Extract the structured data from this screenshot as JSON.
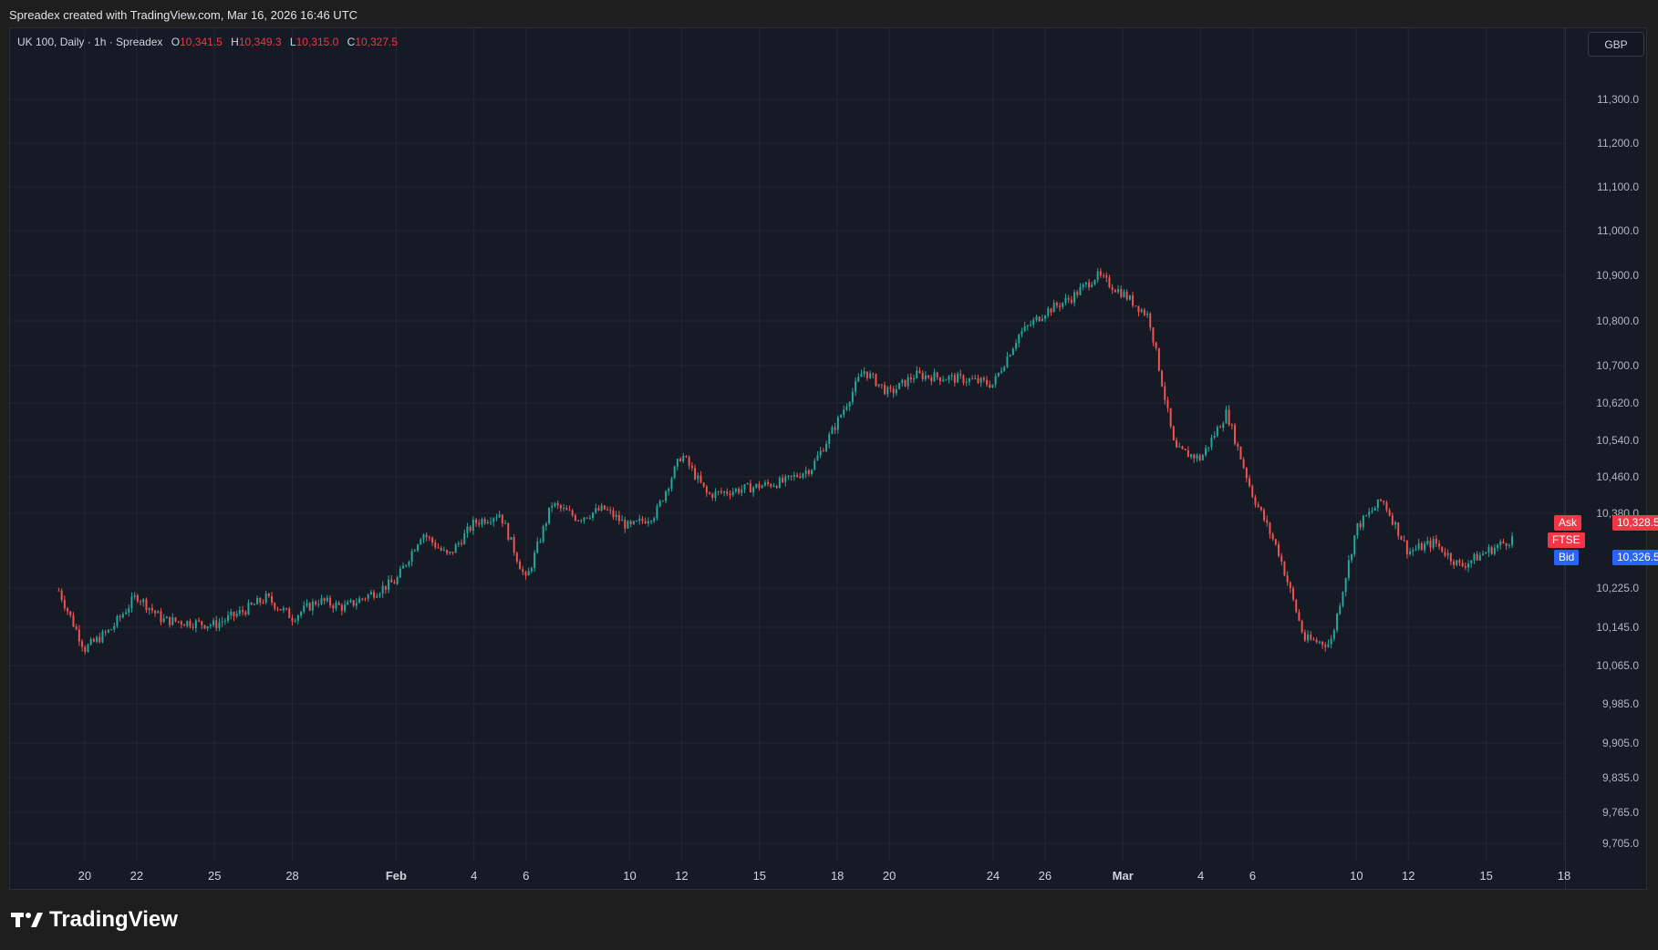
{
  "header": {
    "credit": "Spreadex created with TradingView.com, Mar 16, 2026 16:46 UTC"
  },
  "legend": {
    "symbol": "UK 100, Daily · 1h · Spreadex",
    "open_key": "O",
    "open": "10,341.5",
    "high_key": "H",
    "high": "10,349.3",
    "low_key": "L",
    "low": "10,315.0",
    "close_key": "C",
    "close": "10,327.5"
  },
  "currency": "GBP",
  "price_tags": {
    "ask_label": "Ask",
    "ask_value": "10,328.5",
    "symbol_label": "FTSE",
    "bid_label": "Bid",
    "bid_value": "10,326.5"
  },
  "brand": {
    "name": "TradingView"
  },
  "colors": {
    "up": "#26a69a",
    "down": "#ef5350",
    "ask": "#f23645",
    "bid": "#2962ff",
    "grid": "#232733",
    "background": "#161a25"
  },
  "chart_data": {
    "type": "candlestick",
    "title": "UK 100, Daily · 1h · Spreadex",
    "y_tick_labels": [
      "11,300.0",
      "11,200.0",
      "11,100.0",
      "11,000.0",
      "10,900.0",
      "10,800.0",
      "10,700.0",
      "10,620.0",
      "10,540.0",
      "10,460.0",
      "10,380.0",
      "10,225.0",
      "10,145.0",
      "10,065.0",
      "9,985.0",
      "9,905.0",
      "9,835.0",
      "9,765.0",
      "9,705.0"
    ],
    "y_ticks": [
      11300,
      11200,
      11100,
      11000,
      10900,
      10800,
      10700,
      10620,
      10540,
      10460,
      10380,
      10225,
      10145,
      10065,
      9985,
      9905,
      9835,
      9765,
      9705
    ],
    "x_tick_labels": [
      "20",
      "22",
      "25",
      "28",
      "Feb",
      "4",
      "6",
      "10",
      "12",
      "15",
      "18",
      "20",
      "24",
      "26",
      "Mar",
      "4",
      "6",
      "10",
      "12",
      "15",
      "18"
    ],
    "x_ticks": [
      "2026-01-20",
      "2026-01-22",
      "2026-01-25",
      "2026-01-28",
      "2026-02-01",
      "2026-02-04",
      "2026-02-06",
      "2026-02-10",
      "2026-02-12",
      "2026-02-15",
      "2026-02-18",
      "2026-02-20",
      "2026-02-24",
      "2026-02-26",
      "2026-03-01",
      "2026-03-04",
      "2026-03-06",
      "2026-03-10",
      "2026-03-12",
      "2026-03-15",
      "2026-03-18"
    ],
    "x_range": [
      "2026-01-18",
      "2026-03-18"
    ],
    "grid": true,
    "series": [
      {
        "x": "2026-01-19",
        "close": 10220
      },
      {
        "x": "2026-01-20",
        "close": 10100
      },
      {
        "x": "2026-01-21",
        "close": 10140
      },
      {
        "x": "2026-01-22",
        "close": 10210
      },
      {
        "x": "2026-01-23",
        "close": 10160
      },
      {
        "x": "2026-01-25",
        "close": 10150
      },
      {
        "x": "2026-01-26",
        "close": 10175
      },
      {
        "x": "2026-01-27",
        "close": 10205
      },
      {
        "x": "2026-01-28",
        "close": 10165
      },
      {
        "x": "2026-01-29",
        "close": 10200
      },
      {
        "x": "2026-01-30",
        "close": 10185
      },
      {
        "x": "2026-02-01",
        "close": 10240
      },
      {
        "x": "2026-02-02",
        "close": 10340
      },
      {
        "x": "2026-02-03",
        "close": 10290
      },
      {
        "x": "2026-02-04",
        "close": 10360
      },
      {
        "x": "2026-02-05",
        "close": 10380
      },
      {
        "x": "2026-02-06",
        "close": 10240
      },
      {
        "x": "2026-02-07",
        "close": 10400
      },
      {
        "x": "2026-02-08",
        "close": 10370
      },
      {
        "x": "2026-02-09",
        "close": 10390
      },
      {
        "x": "2026-02-10",
        "close": 10350
      },
      {
        "x": "2026-02-11",
        "close": 10380
      },
      {
        "x": "2026-02-12",
        "close": 10510
      },
      {
        "x": "2026-02-13",
        "close": 10420
      },
      {
        "x": "2026-02-15",
        "close": 10440
      },
      {
        "x": "2026-02-16",
        "close": 10450
      },
      {
        "x": "2026-02-17",
        "close": 10480
      },
      {
        "x": "2026-02-18",
        "close": 10580
      },
      {
        "x": "2026-02-19",
        "close": 10690
      },
      {
        "x": "2026-02-20",
        "close": 10640
      },
      {
        "x": "2026-02-21",
        "close": 10680
      },
      {
        "x": "2026-02-23",
        "close": 10670
      },
      {
        "x": "2026-02-24",
        "close": 10660
      },
      {
        "x": "2026-02-25",
        "close": 10770
      },
      {
        "x": "2026-02-26",
        "close": 10820
      },
      {
        "x": "2026-02-27",
        "close": 10850
      },
      {
        "x": "2026-02-28",
        "close": 10900
      },
      {
        "x": "2026-03-01",
        "close": 10860
      },
      {
        "x": "2026-03-02",
        "close": 10810
      },
      {
        "x": "2026-03-03",
        "close": 10520
      },
      {
        "x": "2026-03-04",
        "close": 10500
      },
      {
        "x": "2026-03-05",
        "close": 10600
      },
      {
        "x": "2026-03-06",
        "close": 10420
      },
      {
        "x": "2026-03-07",
        "close": 10300
      },
      {
        "x": "2026-03-08",
        "close": 10120
      },
      {
        "x": "2026-03-09",
        "close": 10110
      },
      {
        "x": "2026-03-10",
        "close": 10350
      },
      {
        "x": "2026-03-11",
        "close": 10410
      },
      {
        "x": "2026-03-12",
        "close": 10300
      },
      {
        "x": "2026-03-13",
        "close": 10320
      },
      {
        "x": "2026-03-14",
        "close": 10270
      },
      {
        "x": "2026-03-15",
        "close": 10300
      },
      {
        "x": "2026-03-16",
        "close": 10327.5
      }
    ],
    "last_ask": 10328.5,
    "last_bid": 10326.5
  }
}
